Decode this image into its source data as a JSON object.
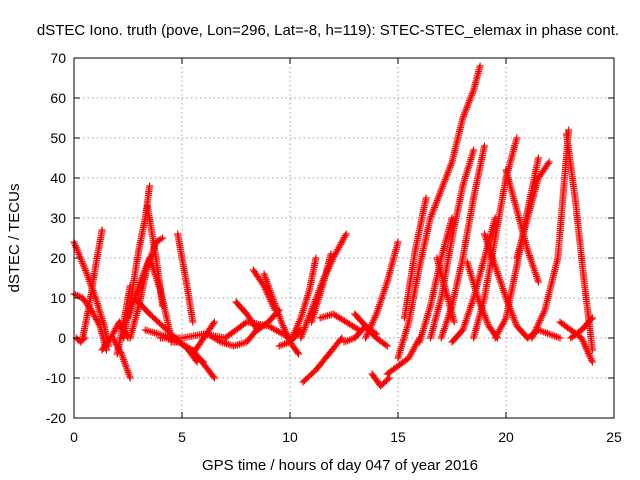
{
  "chart_data": {
    "type": "scatter",
    "title": "dSTEC Iono. truth (pove, Lon=296, Lat=-8, h=119): STEC-STEC_elemax in phase cont.",
    "xlabel": "GPS time / hours of day 047 of year 2016",
    "ylabel": "dSTEC  / TECUs",
    "xlim": [
      0,
      25
    ],
    "ylim": [
      -20,
      70
    ],
    "xticks": [
      0,
      5,
      10,
      15,
      20,
      25
    ],
    "yticks": [
      -20,
      -10,
      0,
      10,
      20,
      30,
      40,
      50,
      60,
      70
    ],
    "grid": true,
    "legend": "none",
    "marker": "+",
    "color": "#ff0000",
    "series": [
      {
        "x": [
          0.0,
          0.3,
          0.6,
          1.0,
          1.4,
          1.6
        ],
        "y": [
          24,
          20,
          16,
          10,
          3,
          -2
        ]
      },
      {
        "x": [
          0.0,
          0.4,
          0.8,
          1.2,
          1.5
        ],
        "y": [
          11,
          10,
          7,
          3,
          -3
        ]
      },
      {
        "x": [
          0.1,
          0.3,
          0.5
        ],
        "y": [
          0,
          -1,
          0
        ]
      },
      {
        "x": [
          0.4,
          0.7,
          1.0,
          1.3
        ],
        "y": [
          0,
          8,
          18,
          27
        ]
      },
      {
        "x": [
          1.3,
          1.7,
          2.1,
          2.5
        ],
        "y": [
          -3,
          0,
          4,
          0
        ]
      },
      {
        "x": [
          1.8,
          2.2,
          2.6
        ],
        "y": [
          0,
          -4,
          -10
        ]
      },
      {
        "x": [
          2.0,
          2.3,
          2.6
        ],
        "y": [
          -4,
          4,
          13
        ]
      },
      {
        "x": [
          2.3,
          2.7,
          3.0,
          3.3,
          3.5
        ],
        "y": [
          0,
          12,
          22,
          30,
          38
        ]
      },
      {
        "x": [
          3.4,
          3.8,
          4.1
        ],
        "y": [
          33,
          20,
          8
        ]
      },
      {
        "x": [
          2.6,
          3.0,
          3.4,
          3.8,
          4.1
        ],
        "y": [
          0,
          8,
          18,
          24,
          25
        ]
      },
      {
        "x": [
          2.5,
          3.0,
          3.5,
          4.0,
          4.5
        ],
        "y": [
          5,
          13,
          20,
          12,
          0
        ]
      },
      {
        "x": [
          2.8,
          3.5,
          4.5,
          5.5,
          6.0
        ],
        "y": [
          10,
          6,
          1,
          -4,
          -6
        ]
      },
      {
        "x": [
          3.3,
          4.5,
          5.5,
          6.5
        ],
        "y": [
          2,
          0,
          -3,
          -10
        ]
      },
      {
        "x": [
          4.0,
          5.0,
          6.0,
          7.0
        ],
        "y": [
          0,
          0,
          1,
          0
        ]
      },
      {
        "x": [
          4.5,
          4.9,
          5.3,
          5.7
        ],
        "y": [
          -1,
          -1,
          -3,
          -6
        ]
      },
      {
        "x": [
          4.8,
          5.2,
          5.5
        ],
        "y": [
          26,
          14,
          4
        ]
      },
      {
        "x": [
          5.5,
          6.0,
          6.5
        ],
        "y": [
          -4,
          0,
          4
        ]
      },
      {
        "x": [
          6.2,
          6.8,
          7.4,
          8.0,
          8.6
        ],
        "y": [
          1,
          -1,
          -2,
          -1,
          3
        ]
      },
      {
        "x": [
          7.0,
          8.0,
          9.0,
          10.0
        ],
        "y": [
          0,
          4,
          3,
          0
        ]
      },
      {
        "x": [
          7.5,
          8.0,
          8.5,
          9.0,
          9.5
        ],
        "y": [
          9,
          6,
          2,
          4,
          7
        ]
      },
      {
        "x": [
          8.3,
          8.8,
          9.3
        ],
        "y": [
          17,
          13,
          7
        ]
      },
      {
        "x": [
          8.8,
          9.2,
          9.6,
          10.0,
          10.4
        ],
        "y": [
          16,
          10,
          4,
          -1,
          -4
        ]
      },
      {
        "x": [
          9.5,
          10.0,
          10.5
        ],
        "y": [
          -2,
          -1,
          2
        ]
      },
      {
        "x": [
          10.1,
          10.5,
          10.9,
          11.2
        ],
        "y": [
          0,
          5,
          12,
          20
        ]
      },
      {
        "x": [
          10.5,
          11.0,
          11.5,
          12.0,
          12.6
        ],
        "y": [
          0,
          7,
          14,
          20,
          26
        ]
      },
      {
        "x": [
          11.0,
          11.5,
          11.9
        ],
        "y": [
          4,
          13,
          21
        ]
      },
      {
        "x": [
          10.6,
          11.2,
          11.8,
          12.4
        ],
        "y": [
          -11,
          -8,
          -4,
          0
        ]
      },
      {
        "x": [
          11.4,
          12.0,
          12.6,
          13.2
        ],
        "y": [
          5,
          6,
          4,
          2
        ]
      },
      {
        "x": [
          12.5,
          13.0,
          13.5,
          14.0
        ],
        "y": [
          -1,
          0,
          3,
          1
        ]
      },
      {
        "x": [
          13.0,
          13.5,
          14.0,
          14.5
        ],
        "y": [
          6,
          3,
          0,
          -2
        ]
      },
      {
        "x": [
          13.5,
          14.0,
          14.5,
          15.0
        ],
        "y": [
          0,
          6,
          14,
          24
        ]
      },
      {
        "x": [
          13.8,
          14.2,
          14.6
        ],
        "y": [
          -9,
          -12,
          -10
        ]
      },
      {
        "x": [
          14.5,
          15.0,
          15.5,
          16.0
        ],
        "y": [
          -9,
          -7,
          -5,
          0
        ]
      },
      {
        "x": [
          15.0,
          15.5,
          16.0,
          16.5,
          17.0,
          17.5,
          18.0,
          18.5,
          18.8
        ],
        "y": [
          -5,
          4,
          18,
          30,
          37,
          44,
          55,
          62,
          68
        ]
      },
      {
        "x": [
          15.3,
          15.8,
          16.3
        ],
        "y": [
          5,
          22,
          35
        ]
      },
      {
        "x": [
          16.0,
          16.5,
          17.0,
          17.5
        ],
        "y": [
          -1,
          8,
          20,
          30
        ]
      },
      {
        "x": [
          16.5,
          17.0,
          17.5,
          18.0,
          18.5
        ],
        "y": [
          0,
          10,
          25,
          38,
          47
        ]
      },
      {
        "x": [
          16.8,
          17.2,
          17.6
        ],
        "y": [
          20,
          12,
          4
        ]
      },
      {
        "x": [
          17.0,
          17.5,
          18.0,
          18.5,
          19.0
        ],
        "y": [
          0,
          8,
          20,
          35,
          48
        ]
      },
      {
        "x": [
          17.5,
          18.0,
          18.5,
          19.0,
          19.5
        ],
        "y": [
          -1,
          2,
          10,
          20,
          30
        ]
      },
      {
        "x": [
          18.2,
          18.7,
          19.2,
          19.6
        ],
        "y": [
          19,
          10,
          3,
          0
        ]
      },
      {
        "x": [
          18.5,
          19.0,
          19.5,
          20.0,
          20.5
        ],
        "y": [
          0,
          10,
          25,
          40,
          50
        ]
      },
      {
        "x": [
          19.0,
          19.5,
          20.0,
          20.5,
          21.0
        ],
        "y": [
          26,
          18,
          10,
          3,
          0
        ]
      },
      {
        "x": [
          19.5,
          20.0,
          20.5,
          21.0,
          21.5
        ],
        "y": [
          0,
          5,
          18,
          32,
          45
        ]
      },
      {
        "x": [
          20.0,
          20.5,
          21.0,
          21.5
        ],
        "y": [
          42,
          32,
          22,
          14
        ]
      },
      {
        "x": [
          20.5,
          21.0,
          21.5,
          22.0
        ],
        "y": [
          20,
          30,
          40,
          44
        ]
      },
      {
        "x": [
          21.0,
          21.5,
          22.0,
          22.5
        ],
        "y": [
          0,
          2,
          1,
          0
        ]
      },
      {
        "x": [
          21.2,
          21.8,
          22.4,
          22.9
        ],
        "y": [
          0,
          7,
          20,
          52
        ]
      },
      {
        "x": [
          22.8,
          23.2,
          23.6,
          24.0
        ],
        "y": [
          51,
          35,
          15,
          -3
        ]
      },
      {
        "x": [
          22.5,
          23.0,
          23.5,
          24.0
        ],
        "y": [
          4,
          2,
          0,
          -6
        ]
      },
      {
        "x": [
          23.0,
          23.5,
          24.0
        ],
        "y": [
          0,
          2,
          5
        ]
      }
    ]
  }
}
